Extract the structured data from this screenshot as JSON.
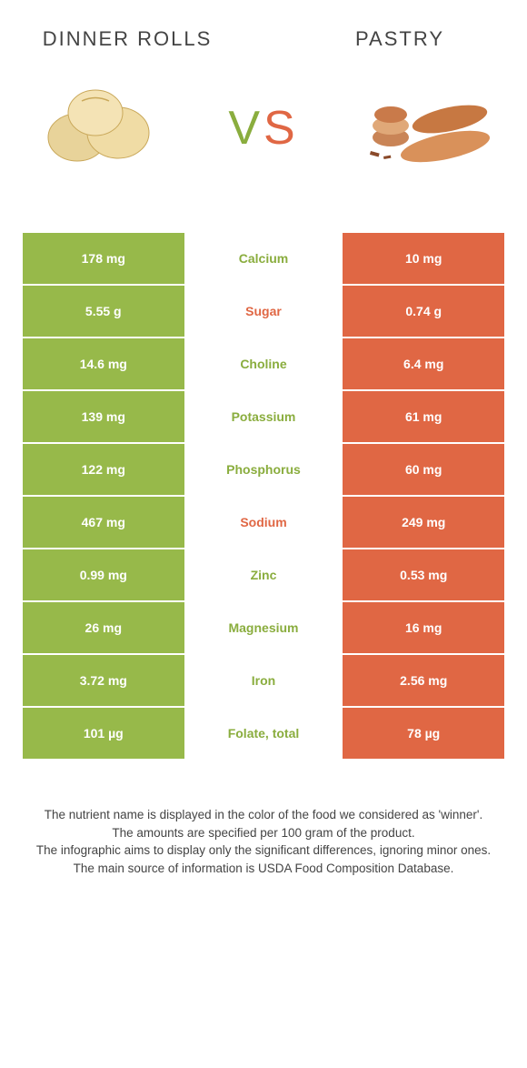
{
  "colors": {
    "left_bg": "#97b94a",
    "right_bg": "#e06744",
    "left_label_color": "#8aad3e",
    "right_label_color": "#e06744",
    "white": "#ffffff"
  },
  "foods": {
    "left": {
      "title": "Dinner rolls"
    },
    "right": {
      "title": "Pastry"
    }
  },
  "vs": {
    "v": "V",
    "s": "S"
  },
  "rows": [
    {
      "left": "178 mg",
      "label": "Calcium",
      "right": "10 mg",
      "winner": "left"
    },
    {
      "left": "5.55 g",
      "label": "Sugar",
      "right": "0.74 g",
      "winner": "right"
    },
    {
      "left": "14.6 mg",
      "label": "Choline",
      "right": "6.4 mg",
      "winner": "left"
    },
    {
      "left": "139 mg",
      "label": "Potassium",
      "right": "61 mg",
      "winner": "left"
    },
    {
      "left": "122 mg",
      "label": "Phosphorus",
      "right": "60 mg",
      "winner": "left"
    },
    {
      "left": "467 mg",
      "label": "Sodium",
      "right": "249 mg",
      "winner": "right"
    },
    {
      "left": "0.99 mg",
      "label": "Zinc",
      "right": "0.53 mg",
      "winner": "left"
    },
    {
      "left": "26 mg",
      "label": "Magnesium",
      "right": "16 mg",
      "winner": "left"
    },
    {
      "left": "3.72 mg",
      "label": "Iron",
      "right": "2.56 mg",
      "winner": "left"
    },
    {
      "left": "101 µg",
      "label": "Folate, total",
      "right": "78 µg",
      "winner": "left"
    }
  ],
  "footer": {
    "l1": "The nutrient name is displayed in the color of the food we considered as 'winner'.",
    "l2": "The amounts are specified per 100 gram of the product.",
    "l3": "The infographic aims to display only the significant differences, ignoring minor ones.",
    "l4": "The main source of information is USDA Food Composition Database."
  }
}
